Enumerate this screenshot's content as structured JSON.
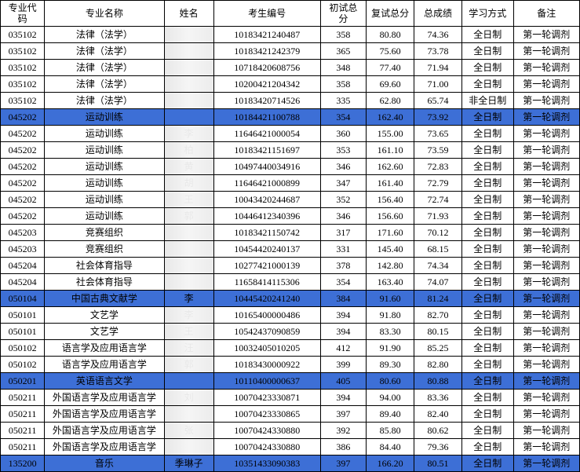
{
  "table": {
    "type": "table",
    "background_color": "#ffffff",
    "border_color": "#000000",
    "highlight_color": "#3d6fd6",
    "font_family": "SimSun",
    "header_fontsize": 12,
    "cell_fontsize": 12,
    "columns": [
      {
        "key": "code",
        "label": "专业代\n码",
        "width": 48,
        "align": "center"
      },
      {
        "key": "major",
        "label": "专业名称",
        "width": 130,
        "align": "center"
      },
      {
        "key": "name",
        "label": "姓名",
        "width": 54,
        "align": "center"
      },
      {
        "key": "examid",
        "label": "考生编号",
        "width": 116,
        "align": "center"
      },
      {
        "key": "prelim",
        "label": "初试总\n分",
        "width": 50,
        "align": "center"
      },
      {
        "key": "retest",
        "label": "复试总分",
        "width": 52,
        "align": "center"
      },
      {
        "key": "total",
        "label": "总成绩",
        "width": 52,
        "align": "center"
      },
      {
        "key": "mode",
        "label": "学习方式",
        "width": 56,
        "align": "center"
      },
      {
        "key": "remark",
        "label": "备注",
        "width": 72,
        "align": "center"
      }
    ],
    "rows": [
      {
        "code": "035102",
        "major": "法律（法学）",
        "name": "",
        "examid": "10183421240487",
        "prelim": "358",
        "retest": "80.80",
        "total": "74.36",
        "mode": "全日制",
        "remark": "第一轮调剂",
        "hl": false
      },
      {
        "code": "035102",
        "major": "法律（法学）",
        "name": "",
        "examid": "10183421242379",
        "prelim": "365",
        "retest": "75.60",
        "total": "73.78",
        "mode": "全日制",
        "remark": "第一轮调剂",
        "hl": false
      },
      {
        "code": "035102",
        "major": "法律（法学）",
        "name": "",
        "examid": "10718420608756",
        "prelim": "348",
        "retest": "77.40",
        "total": "71.94",
        "mode": "全日制",
        "remark": "第一轮调剂",
        "hl": false
      },
      {
        "code": "035102",
        "major": "法律（法学）",
        "name": "",
        "examid": "10200421204342",
        "prelim": "358",
        "retest": "69.60",
        "total": "71.00",
        "mode": "全日制",
        "remark": "第一轮调剂",
        "hl": false
      },
      {
        "code": "035102",
        "major": "法律（法学）",
        "name": "",
        "examid": "10183420714526",
        "prelim": "335",
        "retest": "62.80",
        "total": "65.74",
        "mode": "非全日制",
        "remark": "第一轮调剂",
        "hl": false
      },
      {
        "code": "045202",
        "major": "运动训练",
        "name": "",
        "examid": "10184421100788",
        "prelim": "354",
        "retest": "162.40",
        "total": "73.92",
        "mode": "全日制",
        "remark": "第一轮调剂",
        "hl": true
      },
      {
        "code": "045202",
        "major": "运动训练",
        "name": "李",
        "examid": "11646421000054",
        "prelim": "360",
        "retest": "155.00",
        "total": "73.65",
        "mode": "全日制",
        "remark": "第一轮调剂",
        "hl": false
      },
      {
        "code": "045202",
        "major": "运动训练",
        "name": "柏",
        "examid": "10183421151697",
        "prelim": "353",
        "retest": "161.10",
        "total": "73.59",
        "mode": "全日制",
        "remark": "第一轮调剂",
        "hl": false
      },
      {
        "code": "045202",
        "major": "运动训练",
        "name": "黄",
        "examid": "10497440034916",
        "prelim": "346",
        "retest": "162.60",
        "total": "72.83",
        "mode": "全日制",
        "remark": "第一轮调剂",
        "hl": false
      },
      {
        "code": "045202",
        "major": "运动训练",
        "name": "胡",
        "examid": "11646421000899",
        "prelim": "347",
        "retest": "161.40",
        "total": "72.79",
        "mode": "全日制",
        "remark": "第一轮调剂",
        "hl": false
      },
      {
        "code": "045202",
        "major": "运动训练",
        "name": "王",
        "examid": "10043420244687",
        "prelim": "352",
        "retest": "156.40",
        "total": "72.74",
        "mode": "全日制",
        "remark": "第一轮调剂",
        "hl": false
      },
      {
        "code": "045202",
        "major": "运动训练",
        "name": "郭",
        "examid": "10446412340396",
        "prelim": "346",
        "retest": "156.60",
        "total": "71.93",
        "mode": "全日制",
        "remark": "第一轮调剂",
        "hl": false
      },
      {
        "code": "045203",
        "major": "竞赛组织",
        "name": "",
        "examid": "10183421150742",
        "prelim": "317",
        "retest": "171.60",
        "total": "70.12",
        "mode": "全日制",
        "remark": "第一轮调剂",
        "hl": false
      },
      {
        "code": "045203",
        "major": "竞赛组织",
        "name": "",
        "examid": "10454420240137",
        "prelim": "331",
        "retest": "145.40",
        "total": "68.15",
        "mode": "全日制",
        "remark": "第一轮调剂",
        "hl": false
      },
      {
        "code": "045204",
        "major": "社会体育指导",
        "name": "",
        "examid": "10277421000139",
        "prelim": "378",
        "retest": "142.80",
        "total": "74.34",
        "mode": "全日制",
        "remark": "第一轮调剂",
        "hl": false
      },
      {
        "code": "045204",
        "major": "社会体育指导",
        "name": "",
        "examid": "11658414115306",
        "prelim": "354",
        "retest": "163.40",
        "total": "74.07",
        "mode": "全日制",
        "remark": "第一轮调剂",
        "hl": false
      },
      {
        "code": "050104",
        "major": "中国古典文献学",
        "name": "李",
        "examid": "10445420241240",
        "prelim": "384",
        "retest": "91.60",
        "total": "81.24",
        "mode": "全日制",
        "remark": "第一轮调剂",
        "hl": true
      },
      {
        "code": "050101",
        "major": "文艺学",
        "name": "李",
        "examid": "10165400000486",
        "prelim": "394",
        "retest": "91.80",
        "total": "82.70",
        "mode": "全日制",
        "remark": "第一轮调剂",
        "hl": false
      },
      {
        "code": "050101",
        "major": "文艺学",
        "name": "王",
        "examid": "10542437090859",
        "prelim": "394",
        "retest": "83.30",
        "total": "80.15",
        "mode": "全日制",
        "remark": "第一轮调剂",
        "hl": false
      },
      {
        "code": "050102",
        "major": "语言学及应用语言学",
        "name": "汪",
        "examid": "10032405010205",
        "prelim": "412",
        "retest": "91.90",
        "total": "85.25",
        "mode": "全日制",
        "remark": "第一轮调剂",
        "hl": false
      },
      {
        "code": "050102",
        "major": "语言学及应用语言学",
        "name": "郭",
        "examid": "10183430000922",
        "prelim": "399",
        "retest": "89.30",
        "total": "82.80",
        "mode": "全日制",
        "remark": "第一轮调剂",
        "hl": false
      },
      {
        "code": "050201",
        "major": "英语语言文学",
        "name": "",
        "examid": "10110400000637",
        "prelim": "405",
        "retest": "80.60",
        "total": "80.88",
        "mode": "全日制",
        "remark": "第一轮调剂",
        "hl": true
      },
      {
        "code": "050211",
        "major": "外国语言学及应用语言学",
        "name": "刘",
        "examid": "10070423330871",
        "prelim": "394",
        "retest": "94.00",
        "total": "83.36",
        "mode": "全日制",
        "remark": "第一轮调剂",
        "hl": false
      },
      {
        "code": "050211",
        "major": "外国语言学及应用语言学",
        "name": "",
        "examid": "10070423330865",
        "prelim": "397",
        "retest": "89.40",
        "total": "82.40",
        "mode": "全日制",
        "remark": "第一轮调剂",
        "hl": false
      },
      {
        "code": "050211",
        "major": "外国语言学及应用语言学",
        "name": "张",
        "examid": "10070424330880",
        "prelim": "392",
        "retest": "85.80",
        "total": "80.62",
        "mode": "全日制",
        "remark": "第一轮调剂",
        "hl": false
      },
      {
        "code": "050211",
        "major": "外国语言学及应用语言学",
        "name": "",
        "examid": "10070424330880",
        "prelim": "386",
        "retest": "84.40",
        "total": "79.36",
        "mode": "全日制",
        "remark": "第一轮调剂",
        "hl": false
      },
      {
        "code": "135200",
        "major": "音乐",
        "name": "季琳子",
        "examid": "10351433090383",
        "prelim": "397",
        "retest": "166.20",
        "total": "80.51",
        "mode": "全日制",
        "remark": "第一轮调剂",
        "hl": true
      }
    ]
  }
}
